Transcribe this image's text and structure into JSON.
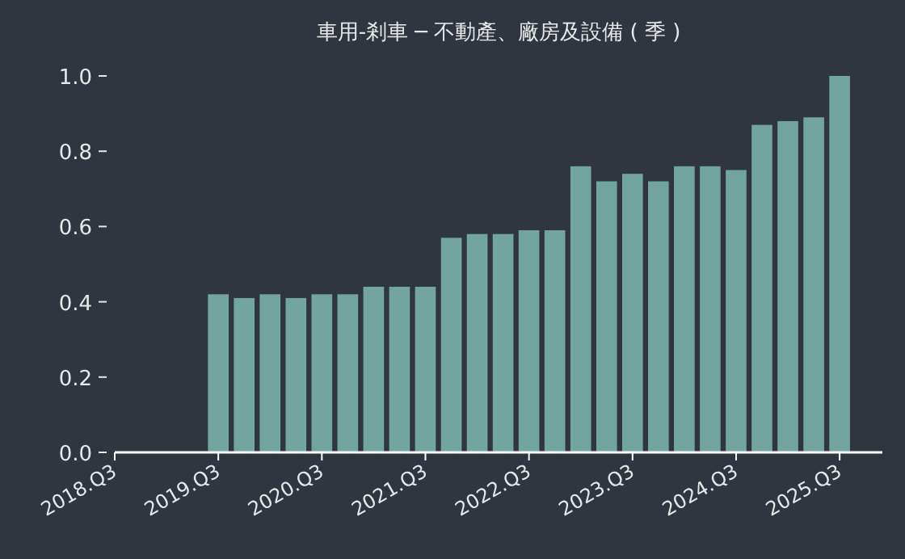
{
  "chart_data": {
    "type": "bar",
    "title": "車用-剎車 ─ 不動產、廠房及設備 ( 季 )",
    "categories": [
      "2018.Q3",
      null,
      null,
      null,
      "2019.Q3",
      null,
      null,
      null,
      "2020.Q3",
      null,
      null,
      null,
      "2021.Q3",
      null,
      null,
      null,
      "2022.Q3",
      null,
      null,
      null,
      "2023.Q3",
      null,
      null,
      null,
      "2024.Q3",
      null,
      null,
      null,
      "2025.Q3"
    ],
    "values": [
      null,
      null,
      null,
      null,
      0.42,
      0.41,
      0.42,
      0.41,
      0.42,
      0.42,
      0.44,
      0.44,
      0.44,
      0.57,
      0.58,
      0.58,
      0.59,
      0.59,
      0.76,
      0.72,
      0.74,
      0.72,
      0.76,
      0.76,
      0.75,
      0.87,
      0.88,
      0.89,
      1.0
    ],
    "color": "#73a59f",
    "ylim": [
      0,
      1.0
    ],
    "yticks": [
      {
        "value": 0,
        "label": "0.0"
      },
      0.2,
      0.4,
      0.6,
      0.8,
      {
        "value": 1.0,
        "label": "1.0"
      }
    ]
  }
}
